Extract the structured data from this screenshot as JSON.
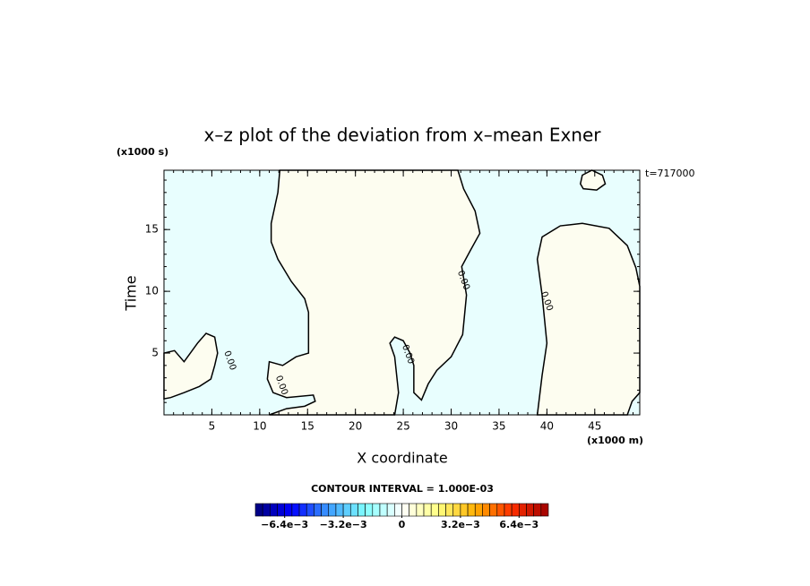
{
  "chart_data": {
    "type": "contour",
    "title": "x–z plot of the deviation from x–mean Exner",
    "xlabel": "X coordinate",
    "ylabel": "Time",
    "xunit": "(x1000 m)",
    "yunit": "(x1000 s)",
    "annotation": "t=717000",
    "interval_text": "CONTOUR INTERVAL = 1.000E-03",
    "xlim": [
      0,
      49.7
    ],
    "ylim": [
      0,
      19.8
    ],
    "xticks": [
      5,
      10,
      15,
      20,
      25,
      30,
      35,
      40,
      45
    ],
    "yticks": [
      5,
      10,
      15
    ],
    "xminor_step": 1,
    "yminor_step": 1,
    "background": "#e8fefe",
    "line_color": "#000000",
    "regions": [
      {
        "color": "#fdfdf0",
        "x": [
          12.1,
          11.9,
          11.2,
          11.2,
          11.9,
          13.3,
          14.7,
          15.1,
          15.1,
          13.8,
          12.4,
          11.0,
          10.8,
          11.4,
          12.8,
          15.6,
          15.8,
          14.7,
          12.8,
          11.0,
          24.1,
          24.5,
          24.1,
          23.6,
          24.1,
          25.0,
          25.7,
          26.1,
          26.1,
          26.9,
          27.6,
          28.5,
          30.0,
          31.2,
          31.6,
          31.1,
          32.0,
          33.0,
          32.5,
          31.3,
          30.7
        ],
        "y": [
          19.8,
          18.0,
          15.5,
          14.0,
          12.6,
          10.8,
          9.4,
          8.3,
          5.0,
          4.7,
          4.0,
          4.3,
          2.9,
          1.8,
          1.4,
          1.6,
          1.1,
          0.7,
          0.5,
          0,
          0,
          1.8,
          4.7,
          5.8,
          6.3,
          6.0,
          5.0,
          4.0,
          1.8,
          1.2,
          2.5,
          3.6,
          4.7,
          6.5,
          9.7,
          12.0,
          13.3,
          14.7,
          16.5,
          18.3,
          19.8
        ]
      },
      {
        "color": "#fdfdf0",
        "x": [
          0,
          1.1,
          2.1,
          3.5,
          4.4,
          5.3,
          5.6,
          5.3,
          4.9,
          3.7,
          2.1,
          0.7,
          0
        ],
        "y": [
          5.0,
          5.2,
          4.3,
          5.8,
          6.6,
          6.3,
          5.0,
          4.0,
          2.9,
          2.3,
          1.8,
          1.4,
          1.3
        ]
      },
      {
        "color": "#fdfdf0",
        "x": [
          39.0,
          39.5,
          40.0,
          39.5,
          39.0,
          39.5,
          41.4,
          43.7,
          46.5,
          48.4,
          49.3,
          49.7,
          49.7,
          48.9,
          48.4
        ],
        "y": [
          0,
          3.2,
          5.8,
          9.7,
          12.6,
          14.4,
          15.3,
          15.5,
          15.1,
          13.7,
          11.9,
          10.4,
          1.8,
          1.1,
          0
        ]
      },
      {
        "color": "#fdfdf0",
        "x": [
          43.5,
          43.7,
          44.7,
          45.8,
          46.1,
          45.2,
          43.8
        ],
        "y": [
          18.7,
          19.4,
          19.8,
          19.4,
          18.7,
          18.2,
          18.3
        ]
      }
    ],
    "contour_labels": [
      {
        "label": "0.00",
        "x": 6.9,
        "y": 4.4
      },
      {
        "label": "0.00",
        "x": 12.3,
        "y": 2.4
      },
      {
        "label": "0.00",
        "x": 25.5,
        "y": 4.9
      },
      {
        "label": "0.00",
        "x": 31.3,
        "y": 10.9
      },
      {
        "label": "0.00",
        "x": 40.0,
        "y": 9.2
      }
    ],
    "colorbar": {
      "lim": [
        -0.008,
        0.008
      ],
      "steps": 40,
      "palette": [
        "#00007a",
        "#0000ff",
        "#3c9cff",
        "#80ffff",
        "#ffffff",
        "#ffff80",
        "#ffb000",
        "#ff3000",
        "#a00000"
      ],
      "ticks": [
        {
          "value": -0.0064,
          "label": "−6.4e−3"
        },
        {
          "value": -0.0032,
          "label": "−3.2e−3"
        },
        {
          "value": 0,
          "label": "0"
        },
        {
          "value": 0.0032,
          "label": "3.2e−3"
        },
        {
          "value": 0.0064,
          "label": "6.4e−3"
        }
      ]
    }
  }
}
